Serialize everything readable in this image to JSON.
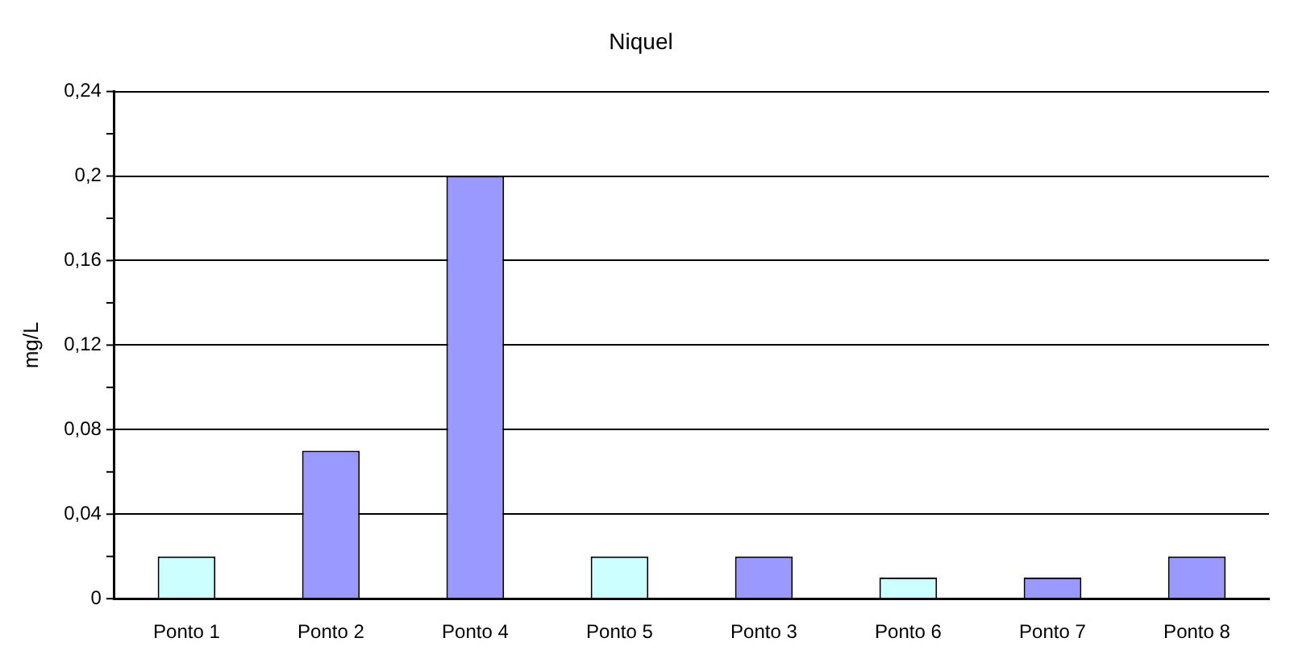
{
  "chart_data": {
    "type": "bar",
    "title": "Niquel",
    "ylabel": "mg/L",
    "categories": [
      "Ponto 1",
      "Ponto 2",
      "Ponto 4",
      "Ponto 5",
      "Ponto 3",
      "Ponto 6",
      "Ponto 7",
      "Ponto 8"
    ],
    "values": [
      0.02,
      0.07,
      0.2,
      0.02,
      0.02,
      0.01,
      0.01,
      0.02
    ],
    "colors": [
      "#ccffff",
      "#9999ff",
      "#9999ff",
      "#ccffff",
      "#9999ff",
      "#ccffff",
      "#9999ff",
      "#9999ff"
    ],
    "ylim": [
      0,
      0.24
    ],
    "yticks": [
      {
        "value": 0,
        "label": "0"
      },
      {
        "value": 0.02,
        "label": null
      },
      {
        "value": 0.04,
        "label": "0,04"
      },
      {
        "value": 0.06,
        "label": null
      },
      {
        "value": 0.08,
        "label": "0,08"
      },
      {
        "value": 0.1,
        "label": null
      },
      {
        "value": 0.12,
        "label": "0,12"
      },
      {
        "value": 0.14,
        "label": null
      },
      {
        "value": 0.16,
        "label": "0,16"
      },
      {
        "value": 0.18,
        "label": null
      },
      {
        "value": 0.2,
        "label": "0,2"
      },
      {
        "value": 0.22,
        "label": null
      },
      {
        "value": 0.24,
        "label": "0,24"
      }
    ],
    "grid": "y",
    "legend": false
  }
}
